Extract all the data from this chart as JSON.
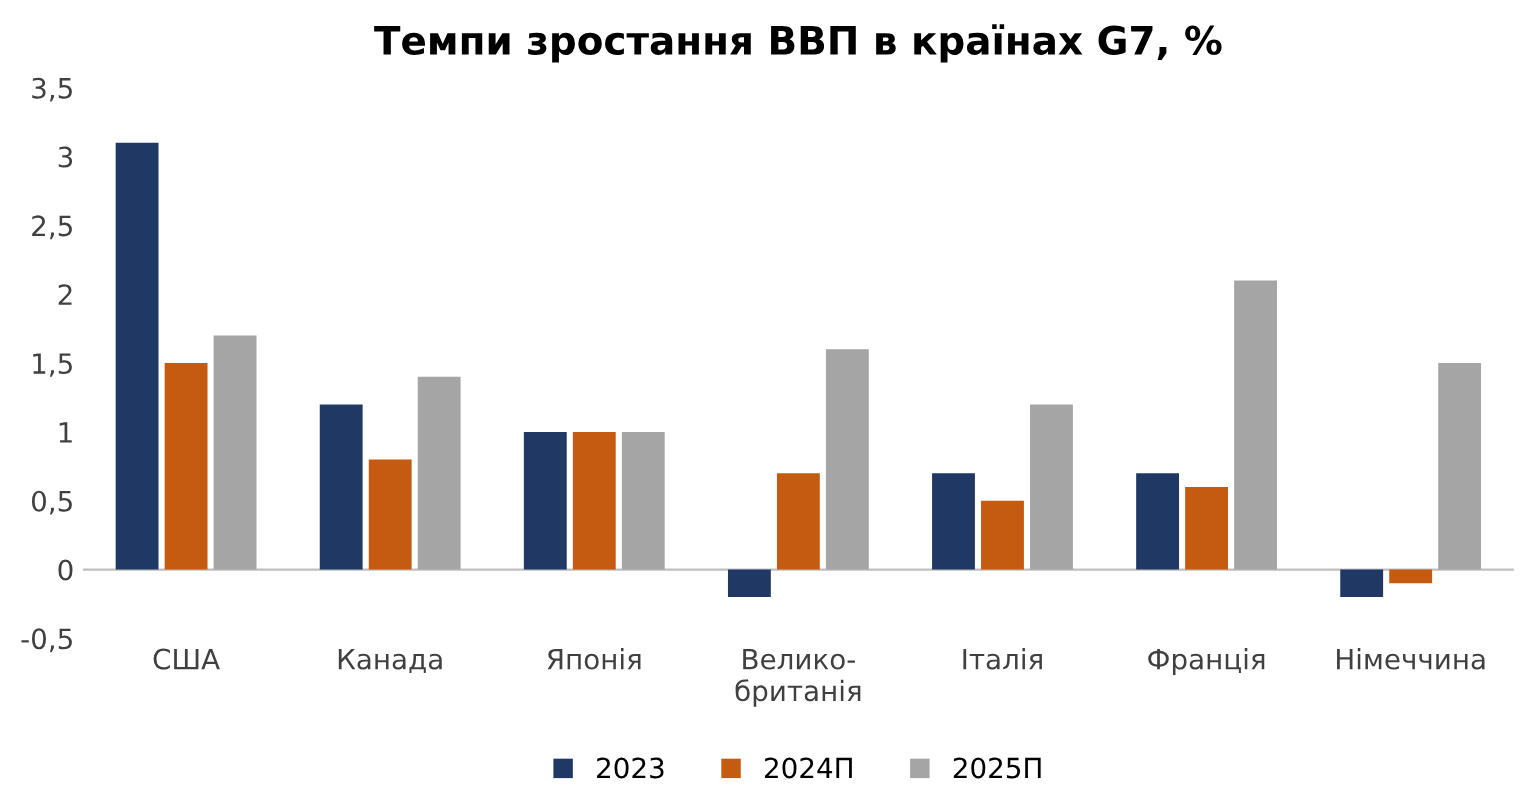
{
  "chart_data": {
    "type": "bar",
    "title": "Темпи зростання ВВП в країнах G7, %",
    "categories": [
      "США",
      "Канада",
      "Японія",
      "Велико-\nбританія",
      "Італія",
      "Франція",
      "Німеччина"
    ],
    "series": [
      {
        "name": "2023",
        "color": "#203864",
        "values": [
          3.1,
          1.2,
          1.0,
          -0.2,
          0.7,
          0.7,
          -0.2
        ]
      },
      {
        "name": "2024П",
        "color": "#c55a11",
        "values": [
          1.5,
          0.8,
          1.0,
          0.7,
          0.5,
          0.6,
          -0.1
        ]
      },
      {
        "name": "2025П",
        "color": "#a5a5a5",
        "values": [
          1.7,
          1.4,
          1.0,
          1.6,
          1.2,
          2.1,
          1.5
        ]
      }
    ],
    "ylim": [
      -0.5,
      3.5
    ],
    "yticks": [
      {
        "value": -0.5,
        "label": "-0,5"
      },
      0,
      {
        "value": 0.5,
        "label": "0,5"
      },
      1,
      {
        "value": 1.5,
        "label": "1,5"
      },
      2,
      {
        "value": 2.5,
        "label": "2,5"
      },
      3,
      {
        "value": 3.5,
        "label": "3,5"
      }
    ],
    "legend": "bottom"
  }
}
